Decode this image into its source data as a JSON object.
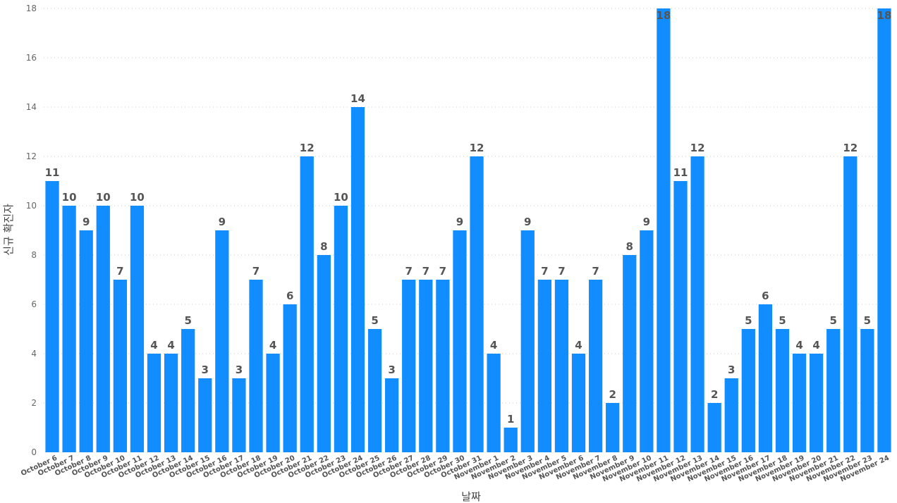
{
  "chart_data": {
    "type": "bar",
    "xlabel": "날짜",
    "ylabel": "신규 확진자",
    "ylim": [
      0,
      18
    ],
    "yticks": [
      0,
      2,
      4,
      6,
      8,
      10,
      12,
      14,
      16,
      18
    ],
    "grid": true,
    "bar_color": "#118DFF",
    "categories": [
      "October 6",
      "October 7",
      "October 8",
      "October 9",
      "October 10",
      "October 11",
      "October 12",
      "October 13",
      "October 14",
      "October 15",
      "October 16",
      "October 17",
      "October 18",
      "October 19",
      "October 20",
      "October 21",
      "October 22",
      "October 23",
      "October 24",
      "October 25",
      "October 26",
      "October 27",
      "October 28",
      "October 29",
      "October 30",
      "October 31",
      "November 1",
      "November 2",
      "November 3",
      "November 4",
      "November 5",
      "November 6",
      "November 7",
      "November 8",
      "November 9",
      "November 10",
      "November 11",
      "November 12",
      "November 13",
      "November 14",
      "November 15",
      "November 16",
      "November 17",
      "November 18",
      "November 19",
      "November 20",
      "November 21",
      "November 22",
      "November 23",
      "November 24"
    ],
    "values": [
      11,
      10,
      9,
      10,
      7,
      10,
      4,
      4,
      5,
      3,
      9,
      3,
      7,
      4,
      6,
      12,
      8,
      10,
      14,
      5,
      3,
      7,
      7,
      7,
      9,
      12,
      4,
      1,
      9,
      7,
      7,
      4,
      7,
      2,
      8,
      9,
      18,
      11,
      12,
      2,
      3,
      5,
      6,
      5,
      4,
      4,
      5,
      12,
      5,
      18
    ]
  }
}
